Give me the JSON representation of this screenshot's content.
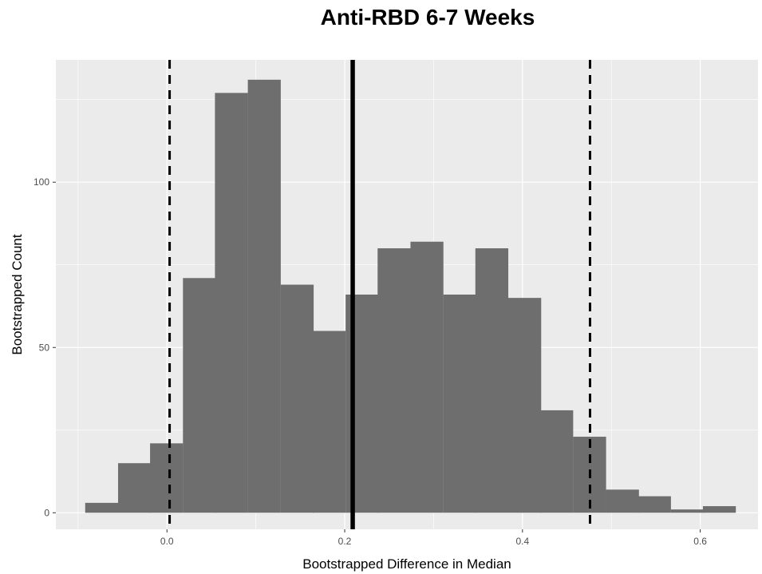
{
  "chart_data": {
    "type": "bar",
    "title": "Anti-RBD 6-7 Weeks",
    "xlabel": "Bootstrapped Difference in Median",
    "ylabel": "Bootstrapped Count",
    "xlim": [
      -0.125,
      0.665
    ],
    "ylim": [
      -5,
      137
    ],
    "x_ticks": [
      0.0,
      0.2,
      0.4,
      0.6
    ],
    "x_tick_labels": [
      "0.0",
      "0.2",
      "0.4",
      "0.6"
    ],
    "y_ticks": [
      0,
      50,
      100
    ],
    "y_tick_labels": [
      "0",
      "50",
      "100"
    ],
    "bin_width": 0.0366,
    "bins": [
      {
        "x_start": -0.092,
        "count": 3
      },
      {
        "x_start": -0.055,
        "count": 15
      },
      {
        "x_start": -0.019,
        "count": 21
      },
      {
        "x_start": 0.018,
        "count": 71
      },
      {
        "x_start": 0.054,
        "count": 127
      },
      {
        "x_start": 0.091,
        "count": 131
      },
      {
        "x_start": 0.128,
        "count": 69
      },
      {
        "x_start": 0.164,
        "count": 55
      },
      {
        "x_start": 0.201,
        "count": 66
      },
      {
        "x_start": 0.237,
        "count": 80
      },
      {
        "x_start": 0.274,
        "count": 82
      },
      {
        "x_start": 0.311,
        "count": 66
      },
      {
        "x_start": 0.347,
        "count": 80
      },
      {
        "x_start": 0.384,
        "count": 65
      },
      {
        "x_start": 0.42,
        "count": 31
      },
      {
        "x_start": 0.457,
        "count": 23
      },
      {
        "x_start": 0.494,
        "count": 7
      },
      {
        "x_start": 0.53,
        "count": 5
      },
      {
        "x_start": 0.567,
        "count": 1
      },
      {
        "x_start": 0.603,
        "count": 2
      }
    ],
    "reference_lines": [
      {
        "x": 0.003,
        "style": "dashed"
      },
      {
        "x": 0.209,
        "style": "solid"
      },
      {
        "x": 0.476,
        "style": "dashed"
      }
    ],
    "colors": {
      "bar_fill": "#6e6e6e",
      "panel_background": "#ebebeb",
      "gridline": "#ffffff",
      "reference_line": "#000000"
    },
    "grid": true,
    "legend": "none"
  }
}
